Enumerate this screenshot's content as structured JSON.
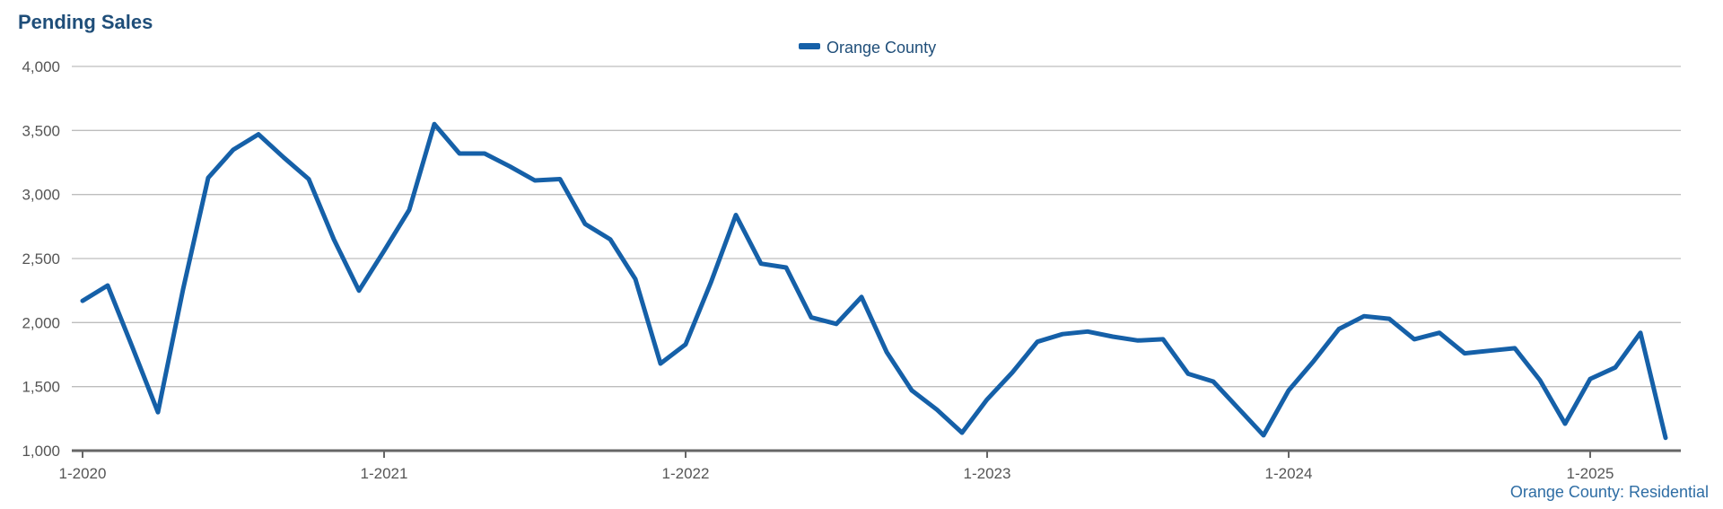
{
  "chart_data": {
    "type": "line",
    "title": "Pending Sales",
    "legend": {
      "position": "top-center",
      "entries": [
        "Orange County"
      ]
    },
    "series": [
      {
        "name": "Orange County",
        "color": "#1560a8",
        "x": [
          "2020-01",
          "2020-02",
          "2020-03",
          "2020-04",
          "2020-05",
          "2020-06",
          "2020-07",
          "2020-08",
          "2020-09",
          "2020-10",
          "2020-11",
          "2020-12",
          "2021-01",
          "2021-02",
          "2021-03",
          "2021-04",
          "2021-05",
          "2021-06",
          "2021-07",
          "2021-08",
          "2021-09",
          "2021-10",
          "2021-11",
          "2021-12",
          "2022-01",
          "2022-02",
          "2022-03",
          "2022-04",
          "2022-05",
          "2022-06",
          "2022-07",
          "2022-08",
          "2022-09",
          "2022-10",
          "2022-11",
          "2022-12",
          "2023-01",
          "2023-02",
          "2023-03",
          "2023-04",
          "2023-05",
          "2023-06",
          "2023-07",
          "2023-08",
          "2023-09",
          "2023-10",
          "2023-11",
          "2023-12",
          "2024-01",
          "2024-02",
          "2024-03",
          "2024-04",
          "2024-05",
          "2024-06",
          "2024-07",
          "2024-08",
          "2024-09",
          "2024-10",
          "2024-11",
          "2024-12",
          "2025-01",
          "2025-02",
          "2025-03",
          "2025-04"
        ],
        "values": [
          2170,
          2290,
          1800,
          1300,
          2260,
          3130,
          3350,
          3470,
          3290,
          3120,
          2650,
          2250,
          2560,
          2880,
          3550,
          3320,
          3320,
          3220,
          3110,
          3120,
          2770,
          2650,
          2340,
          1680,
          1830,
          2310,
          2840,
          2460,
          2430,
          2040,
          1990,
          2200,
          1770,
          1470,
          1320,
          1140,
          1400,
          1610,
          1850,
          1910,
          1930,
          1890,
          1860,
          1870,
          1600,
          1540,
          1330,
          1120,
          1470,
          1700,
          1950,
          2050,
          2030,
          1870,
          1920,
          1760,
          1780,
          1800,
          1550,
          1210,
          1560,
          1650,
          1920,
          1100
        ]
      }
    ],
    "y_axis": {
      "ylim": [
        1000,
        4000
      ],
      "ticks": [
        1000,
        1500,
        2000,
        2500,
        3000,
        3500,
        4000
      ],
      "tick_labels": [
        "1,000",
        "1,500",
        "2,000",
        "2,500",
        "3,000",
        "3,500",
        "4,000"
      ]
    },
    "x_axis": {
      "ticks": [
        "2020-01",
        "2021-01",
        "2022-01",
        "2023-01",
        "2024-01",
        "2025-01"
      ],
      "tick_labels": [
        "1-2020",
        "1-2021",
        "1-2022",
        "1-2023",
        "1-2024",
        "1-2025"
      ]
    },
    "grid": true,
    "source_note": "Orange County: Residential"
  }
}
